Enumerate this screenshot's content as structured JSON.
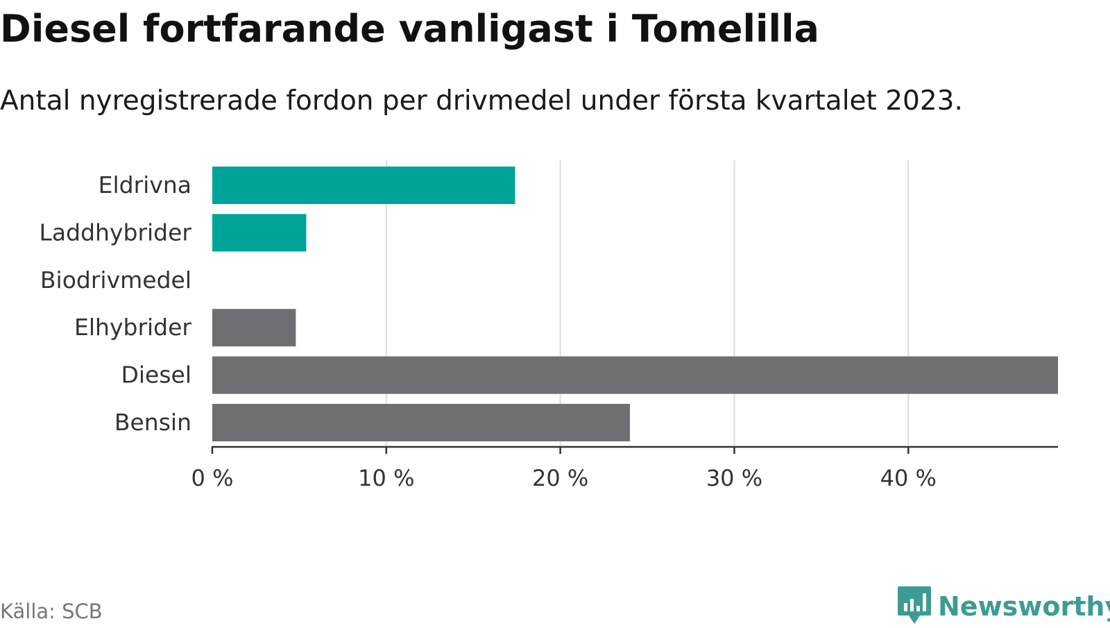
{
  "title": "Diesel fortfarande vanligast i Tomelilla",
  "subtitle": "Antal nyregistrerade fordon per drivmedel under första kvartalet 2023.",
  "source": "Källa: SCB",
  "logo": {
    "text": "Newsworthy",
    "icon": "bar-chart-speech-bubble-icon"
  },
  "colors": {
    "highlight": "#00a398",
    "default": "#6e6e73",
    "gridline": "#dcdcdc",
    "axis": "#333333",
    "logo": "#3e9b94"
  },
  "chart_data": {
    "type": "bar",
    "orientation": "horizontal",
    "categories": [
      "Eldrivna",
      "Laddhybrider",
      "Biodrivmedel",
      "Elhybrider",
      "Diesel",
      "Bensin"
    ],
    "values": [
      17.4,
      5.4,
      0,
      4.8,
      48.6,
      24.0
    ],
    "bar_colors": [
      "#00a398",
      "#00a398",
      "#6e6e73",
      "#6e6e73",
      "#6e6e73",
      "#6e6e73"
    ],
    "xlim": [
      0,
      48.6
    ],
    "xticks": [
      0,
      10,
      20,
      30,
      40
    ],
    "tick_labels": [
      "0 %",
      "10 %",
      "20 %",
      "30 %",
      "40 %"
    ],
    "grid": true
  }
}
